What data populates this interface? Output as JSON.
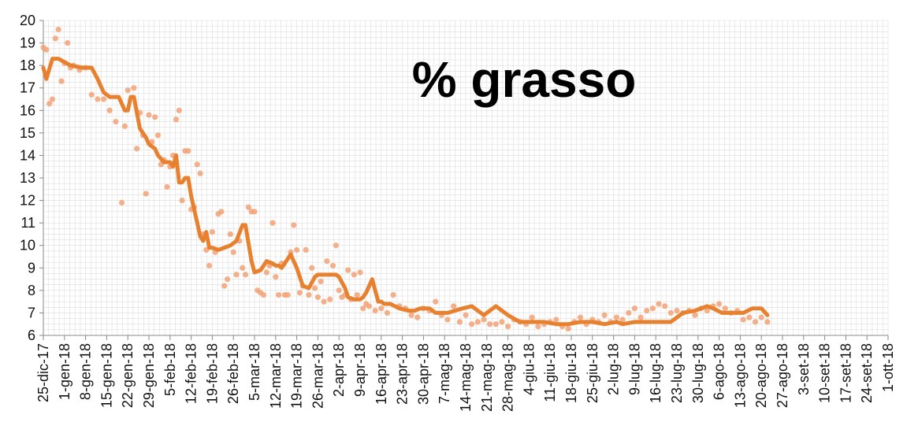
{
  "chart_data": {
    "type": "line",
    "title": "% grasso",
    "xlabel": "",
    "ylabel": "",
    "ylim": [
      6,
      20
    ],
    "yticks": [
      "6",
      "7",
      "8",
      "9",
      "10",
      "11",
      "12",
      "13",
      "14",
      "15",
      "16",
      "17",
      "18",
      "19",
      "20"
    ],
    "x_tick_labels": [
      "25-dic-17",
      "1-gen-18",
      "8-gen-18",
      "15-gen-18",
      "22-gen-18",
      "29-gen-18",
      "5-feb-18",
      "12-feb-18",
      "19-feb-18",
      "26-feb-18",
      "5-mar-18",
      "12-mar-18",
      "19-mar-18",
      "26-mar-18",
      "2-apr-18",
      "9-apr-18",
      "16-apr-18",
      "23-apr-18",
      "30-apr-18",
      "7-mag-18",
      "14-mag-18",
      "21-mag-18",
      "28-mag-18",
      "4-giu-18",
      "11-giu-18",
      "18-giu-18",
      "25-giu-18",
      "2-lug-18",
      "9-lug-18",
      "16-lug-18",
      "23-lug-18",
      "30-lug-18",
      "6-ago-18",
      "13-ago-18",
      "20-ago-18",
      "27-ago-18",
      "3-set-18",
      "10-set-18",
      "17-set-18",
      "24-set-18",
      "1-ott-18"
    ],
    "grid": true,
    "legend": "none",
    "colors": {
      "line": "#e8812f",
      "points": "#f2a275",
      "grid": "#dddddd",
      "axis": "#888888"
    },
    "series": [
      {
        "kind": "line",
        "x_day": [
          0,
          1,
          3,
          5,
          9,
          13,
          16,
          18,
          20,
          22,
          23,
          24,
          25,
          27,
          28,
          29,
          30,
          31,
          32,
          34,
          35,
          37,
          38,
          40,
          41,
          42,
          43,
          44,
          45,
          46,
          47,
          48,
          49,
          51,
          52,
          53,
          54,
          55,
          56,
          58,
          60,
          62,
          64,
          66,
          67,
          69,
          70,
          72,
          74,
          76,
          77,
          78,
          79,
          80,
          82,
          84,
          86,
          88,
          90,
          91,
          93,
          95,
          97,
          98,
          100,
          101,
          103,
          105,
          106,
          107,
          109,
          111,
          112,
          113,
          115,
          118,
          121,
          123,
          125,
          128,
          130,
          134,
          139,
          142,
          146,
          150,
          154,
          158,
          162,
          166,
          170,
          174,
          178,
          182,
          186,
          190,
          192,
          196,
          200,
          204,
          208,
          212,
          216,
          220,
          222,
          225,
          228,
          232,
          235,
          238,
          240
        ],
        "values": [
          17.9,
          17.4,
          18.3,
          18.3,
          18.0,
          17.9,
          17.9,
          17.4,
          16.8,
          16.6,
          16.6,
          16.6,
          16.6,
          16.0,
          16.0,
          16.6,
          16.6,
          15.9,
          15.2,
          14.8,
          14.5,
          14.3,
          14.0,
          13.7,
          13.7,
          13.7,
          13.5,
          14.0,
          12.8,
          12.8,
          13.0,
          13.0,
          12.2,
          11.0,
          10.4,
          10.2,
          10.6,
          9.9,
          9.9,
          9.8,
          9.9,
          10.0,
          10.2,
          10.9,
          10.9,
          9.3,
          8.8,
          8.9,
          9.3,
          9.2,
          9.1,
          9.1,
          9.0,
          9.2,
          9.6,
          9.0,
          8.2,
          8.1,
          8.6,
          8.7,
          8.7,
          8.7,
          8.7,
          8.6,
          8.1,
          7.7,
          7.6,
          7.6,
          7.7,
          7.9,
          8.5,
          7.5,
          7.5,
          7.4,
          7.4,
          7.2,
          7.1,
          7.1,
          7.2,
          7.2,
          7.0,
          7.0,
          7.2,
          7.3,
          6.9,
          7.3,
          6.9,
          6.6,
          6.6,
          6.6,
          6.5,
          6.5,
          6.6,
          6.6,
          6.5,
          6.6,
          6.5,
          6.6,
          6.6,
          6.6,
          6.6,
          7.0,
          7.1,
          7.3,
          7.2,
          7.0,
          7.0,
          7.0,
          7.2,
          7.2,
          6.9
        ]
      },
      {
        "kind": "scatter",
        "x_day": [
          0,
          1,
          2,
          3,
          4,
          5,
          6,
          7,
          8,
          9,
          10,
          12,
          14,
          16,
          18,
          20,
          22,
          24,
          26,
          27,
          28,
          30,
          31,
          32,
          33,
          34,
          35,
          36,
          37,
          38,
          39,
          40,
          41,
          42,
          43,
          44,
          45,
          46,
          47,
          48,
          49,
          50,
          51,
          52,
          53,
          54,
          55,
          56,
          57,
          58,
          59,
          60,
          61,
          62,
          63,
          64,
          65,
          66,
          67,
          68,
          69,
          70,
          71,
          72,
          73,
          74,
          75,
          76,
          77,
          78,
          79,
          80,
          81,
          82,
          83,
          84,
          85,
          86,
          87,
          88,
          89,
          90,
          91,
          92,
          93,
          94,
          95,
          96,
          97,
          98,
          99,
          100,
          101,
          102,
          103,
          104,
          105,
          106,
          107,
          108,
          110,
          112,
          114,
          116,
          118,
          120,
          122,
          124,
          126,
          128,
          130,
          132,
          134,
          136,
          138,
          140,
          142,
          144,
          146,
          148,
          150,
          152,
          154,
          156,
          158,
          160,
          162,
          164,
          166,
          168,
          170,
          172,
          174,
          176,
          178,
          180,
          182,
          184,
          186,
          188,
          190,
          192,
          194,
          196,
          198,
          200,
          202,
          204,
          206,
          208,
          210,
          212,
          214,
          216,
          218,
          220,
          222,
          224,
          226,
          228,
          230,
          232,
          234,
          236,
          238,
          240
        ],
        "values": [
          18.8,
          18.7,
          16.3,
          16.5,
          19.2,
          19.6,
          17.3,
          18.1,
          19.0,
          17.9,
          18.0,
          17.8,
          17.9,
          16.7,
          16.5,
          16.5,
          16.0,
          15.5,
          11.9,
          15.3,
          16.9,
          17.0,
          14.3,
          15.9,
          14.9,
          12.3,
          15.8,
          14.6,
          15.7,
          14.9,
          13.6,
          13.8,
          12.6,
          13.5,
          14.0,
          15.6,
          16.0,
          12.0,
          14.2,
          14.2,
          11.6,
          11.7,
          13.6,
          13.2,
          10.5,
          9.8,
          9.1,
          10.6,
          9.7,
          11.4,
          11.5,
          8.2,
          8.5,
          10.5,
          9.7,
          8.7,
          10.2,
          9.0,
          8.7,
          11.7,
          11.5,
          11.5,
          8.0,
          7.9,
          7.8,
          8.8,
          9.1,
          11.0,
          8.6,
          7.8,
          9.2,
          7.8,
          7.8,
          9.7,
          10.9,
          9.8,
          7.9,
          8.2,
          9.8,
          7.8,
          9.0,
          8.1,
          7.7,
          8.4,
          7.5,
          9.3,
          7.6,
          9.1,
          10.0,
          8.0,
          7.7,
          7.8,
          8.9,
          7.6,
          8.7,
          7.8,
          8.8,
          7.2,
          7.4,
          7.3,
          7.1,
          7.2,
          7.0,
          7.8,
          7.3,
          7.2,
          6.9,
          6.8,
          7.2,
          7.1,
          7.5,
          6.9,
          6.7,
          7.3,
          6.6,
          6.9,
          6.5,
          6.6,
          6.7,
          6.5,
          6.5,
          6.6,
          6.4,
          6.7,
          6.6,
          6.5,
          6.8,
          6.4,
          6.5,
          6.6,
          6.7,
          6.4,
          6.3,
          6.6,
          6.8,
          6.5,
          6.7,
          6.6,
          6.9,
          6.6,
          6.8,
          6.7,
          7.0,
          7.2,
          6.8,
          7.1,
          7.2,
          7.4,
          7.3,
          7.0,
          7.1,
          7.0,
          7.1,
          6.9,
          7.2,
          7.1,
          7.3,
          7.4,
          7.2,
          7.0,
          7.1,
          6.7,
          6.8,
          6.6,
          6.8,
          6.6
        ]
      }
    ]
  }
}
